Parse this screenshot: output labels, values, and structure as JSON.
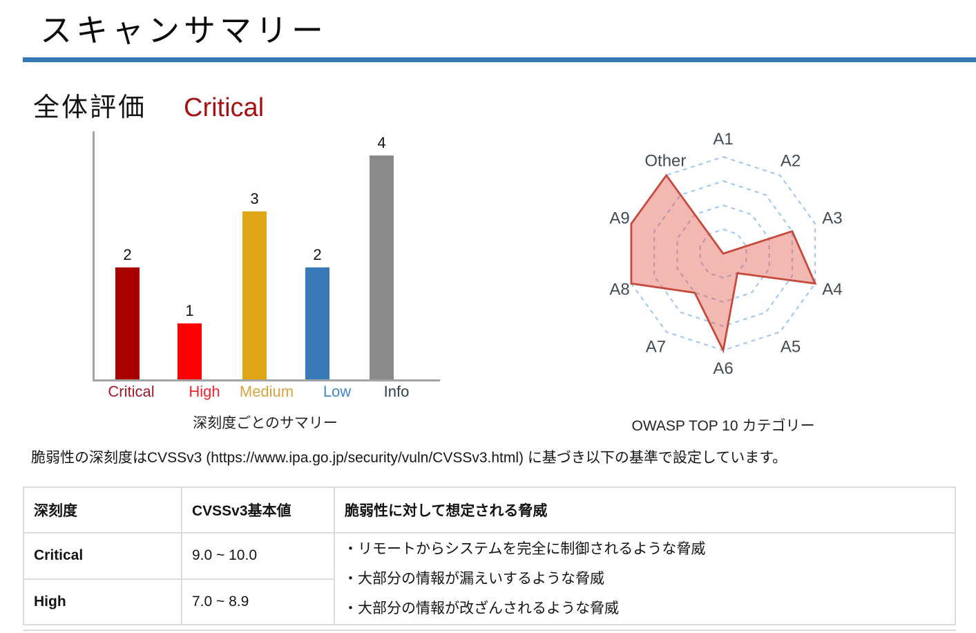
{
  "page": {
    "title": "スキャンサマリー",
    "overall_label": "全体評価",
    "overall_value": "Critical",
    "note": "脆弱性の深刻度はCVSSv3 (https://www.ipa.go.jp/security/vuln/CVSSv3.html) に基づき以下の基準で設定しています。"
  },
  "colors": {
    "title_rule": "#3478B6",
    "overall_value": "#A41212",
    "axis": "#A3A3A3",
    "table_border": "#DBDBDB",
    "severity_text": "#A31111"
  },
  "chart_data": [
    {
      "type": "bar",
      "title": "深刻度ごとのサマリー",
      "categories": [
        "Critical",
        "High",
        "Medium",
        "Low",
        "Info"
      ],
      "values": [
        2,
        1,
        3,
        2,
        4
      ],
      "bar_colors": [
        "#A80000",
        "#FE0000",
        "#E1A616",
        "#3779B9",
        "#8A8A8A"
      ],
      "label_colors": [
        "#A11A2B",
        "#F8222F",
        "#D7A440",
        "#4288C6",
        "#30404E"
      ],
      "xlabel": "",
      "ylabel": "",
      "ylim": [
        0,
        4
      ],
      "grid": false,
      "value_labels": true,
      "legend": false
    },
    {
      "type": "radar",
      "title": "OWASP TOP 10 カテゴリー",
      "categories": [
        "A1",
        "A2",
        "A3",
        "A4",
        "A5",
        "A6",
        "A7",
        "A8",
        "A9",
        "Other"
      ],
      "values": [
        0,
        0,
        3,
        4,
        1,
        4,
        2,
        4,
        4,
        4
      ],
      "rmax": 4,
      "rings": 4,
      "grid_style": "dashed",
      "grid_color": "#9CC5F0",
      "stroke_color": "#C8483B",
      "fill_color": "rgba(224,85,69,0.42)",
      "label_color": "#424A52",
      "legend": false
    }
  ],
  "table": {
    "headers": [
      "深刻度",
      "CVSSv3基本値",
      "脆弱性に対して想定される脅威"
    ],
    "rows": [
      {
        "severity": "Critical",
        "cvss": "9.0 ~ 10.0"
      },
      {
        "severity": "High",
        "cvss": "7.0 ~ 8.9"
      }
    ],
    "threats": [
      "・リモートからシステムを完全に制御されるような脅威",
      "・大部分の情報が漏えいするような脅威",
      "・大部分の情報が改ざんされるような脅威"
    ]
  }
}
